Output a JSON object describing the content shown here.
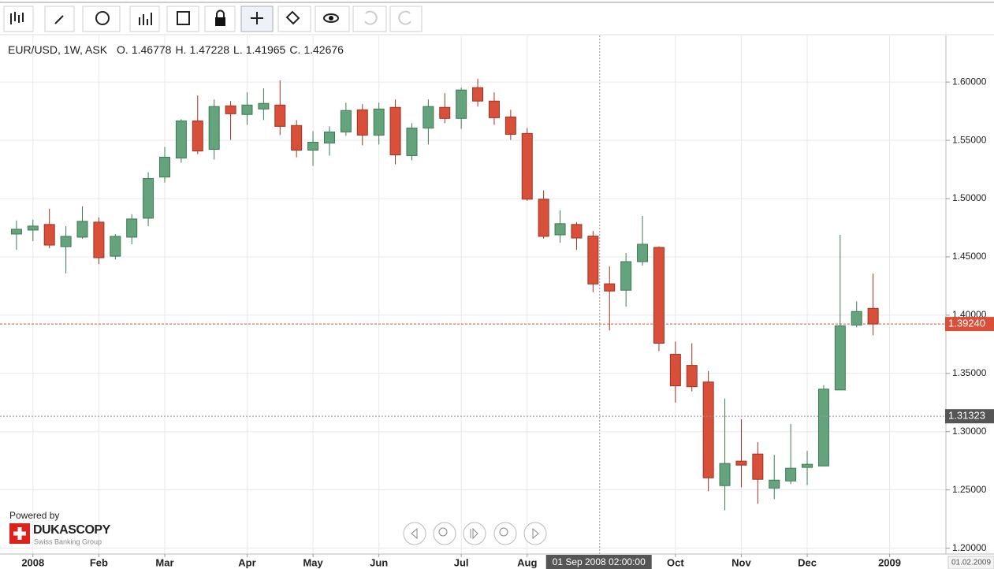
{
  "chart_data": {
    "type": "candlestick",
    "title": "EUR/USD, 1W, ASK",
    "ohlc_header": [
      {
        "label": "O.",
        "value": 1.46778
      },
      {
        "label": "H.",
        "value": 1.47228
      },
      {
        "label": "L.",
        "value": 1.41965
      },
      {
        "label": "C.",
        "value": 1.42676
      }
    ],
    "categories": [
      null,
      null,
      null,
      null,
      null,
      null,
      null,
      null,
      null,
      null,
      null,
      null,
      null,
      null,
      null,
      null,
      null,
      null,
      null,
      null,
      null,
      null,
      null,
      null,
      null,
      null,
      null,
      null,
      null,
      null,
      null,
      null,
      null,
      null,
      null,
      null,
      null,
      null,
      null,
      null,
      null,
      null,
      null,
      null,
      null,
      null,
      null,
      null,
      null,
      null,
      null,
      null,
      null
    ],
    "open": [
      1.4696,
      1.473,
      1.4778,
      1.4588,
      1.4669,
      1.4798,
      1.4506,
      1.4669,
      1.4832,
      1.5185,
      1.5348,
      1.5667,
      1.5423,
      1.5796,
      1.5722,
      1.5769,
      1.5803,
      1.5627,
      1.5416,
      1.5477,
      1.5572,
      1.5762,
      1.5545,
      1.5783,
      1.5369,
      1.5606,
      1.5783,
      1.5688,
      1.5952,
      1.5837,
      1.5701,
      1.5559,
      1.4995,
      1.4689,
      1.4778,
      1.46778,
      1.4269,
      1.4214,
      1.4459,
      1.4581,
      1.3664,
      1.3569,
      1.3426,
      1.2537,
      1.2747,
      1.2808,
      1.2516,
      1.2577,
      1.2693,
      1.2706,
      1.3358,
      1.3915,
      1.4058
    ],
    "high": [
      1.4812,
      1.4819,
      1.4913,
      1.4764,
      1.4934,
      1.4839,
      1.4696,
      1.4866,
      1.5226,
      1.5443,
      1.5681,
      1.5885,
      1.5851,
      1.5837,
      1.5912,
      1.5946,
      1.6014,
      1.5674,
      1.5579,
      1.562,
      1.5823,
      1.581,
      1.5823,
      1.5851,
      1.5647,
      1.5851,
      1.5905,
      1.5952,
      1.6027,
      1.5912,
      1.5762,
      1.5606,
      1.507,
      1.49,
      1.4798,
      1.47228,
      1.4418,
      1.4533,
      1.4852,
      1.459,
      1.3773,
      1.3759,
      1.3521,
      1.3284,
      1.3107,
      1.291,
      1.2801,
      1.3066,
      1.2835,
      1.3399,
      1.4689,
      1.4119,
      1.4357
    ],
    "low": [
      1.456,
      1.4635,
      1.4574,
      1.4357,
      1.4656,
      1.4438,
      1.4479,
      1.4608,
      1.4764,
      1.5138,
      1.5307,
      1.5382,
      1.5335,
      1.5504,
      1.5633,
      1.5674,
      1.5545,
      1.5355,
      1.528,
      1.5369,
      1.5538,
      1.5457,
      1.5464,
      1.5294,
      1.5328,
      1.5464,
      1.5647,
      1.5599,
      1.579,
      1.5633,
      1.5504,
      1.4981,
      1.4656,
      1.4622,
      1.456,
      1.41965,
      1.3868,
      1.4072,
      1.4425,
      1.3691,
      1.325,
      1.3345,
      1.2489,
      1.2326,
      1.2523,
      1.2381,
      1.2421,
      1.255,
      1.2543,
      1.2706,
      1.3358,
      1.3895,
      1.3827
    ],
    "close": [
      1.4737,
      1.4764,
      1.4601,
      1.4676,
      1.4805,
      1.4493,
      1.4676,
      1.4825,
      1.5172,
      1.5355,
      1.5667,
      1.5409,
      1.579,
      1.5728,
      1.5803,
      1.5817,
      1.562,
      1.5416,
      1.5484,
      1.5572,
      1.5756,
      1.5545,
      1.5769,
      1.5375,
      1.5606,
      1.579,
      1.5688,
      1.5932,
      1.5837,
      1.5694,
      1.5552,
      1.4995,
      1.4676,
      1.4785,
      1.4662,
      1.42676,
      1.4207,
      1.4459,
      1.4608,
      1.3759,
      1.3393,
      1.3386,
      1.2604,
      1.2727,
      1.2713,
      1.2591,
      1.2584,
      1.2686,
      1.272,
      1.3365,
      1.3908,
      1.4031,
      1.3924
    ],
    "up_color": "#64a37c",
    "down_color": "#d9503a",
    "ylim": [
      1.195,
      1.64
    ],
    "yticks": [
      {
        "value": 1.2,
        "label": "1.20000"
      },
      {
        "value": 1.25,
        "label": "1.25000"
      },
      {
        "value": 1.3,
        "label": "1.30000"
      },
      {
        "value": 1.35,
        "label": "1.35000"
      },
      {
        "value": 1.4,
        "label": "1.40000"
      },
      {
        "value": 1.45,
        "label": "1.45000"
      },
      {
        "value": 1.5,
        "label": "1.50000"
      },
      {
        "value": 1.55,
        "label": "1.55000"
      },
      {
        "value": 1.6,
        "label": "1.60000"
      }
    ],
    "xlim": [
      -1,
      56.42
    ],
    "xticks": [
      {
        "value": 1,
        "label": "2008"
      },
      {
        "value": 5,
        "label": "Feb"
      },
      {
        "value": 9,
        "label": "Mar"
      },
      {
        "value": 14,
        "label": "Apr"
      },
      {
        "value": 18,
        "label": "May"
      },
      {
        "value": 22,
        "label": "Jun"
      },
      {
        "value": 27,
        "label": "Jul"
      },
      {
        "value": 31,
        "label": "Aug"
      },
      {
        "value": 40,
        "label": "Oct"
      },
      {
        "value": 44,
        "label": "Nov"
      },
      {
        "value": 48,
        "label": "Dec"
      },
      {
        "value": 53,
        "label": "2009"
      }
    ],
    "grid": true,
    "current_price": {
      "value": 1.3924,
      "label": "1.39240"
    },
    "crosshair": {
      "x": 35.4,
      "x_label": "01 Sep 2008 02:00:00",
      "y": 1.31323,
      "y_label": "1.31323"
    },
    "range_end_label": "01.02.2009"
  },
  "branding": {
    "powered": "Powered by",
    "name": "DUKASCOPY",
    "tagline": "Swiss Banking Group"
  }
}
